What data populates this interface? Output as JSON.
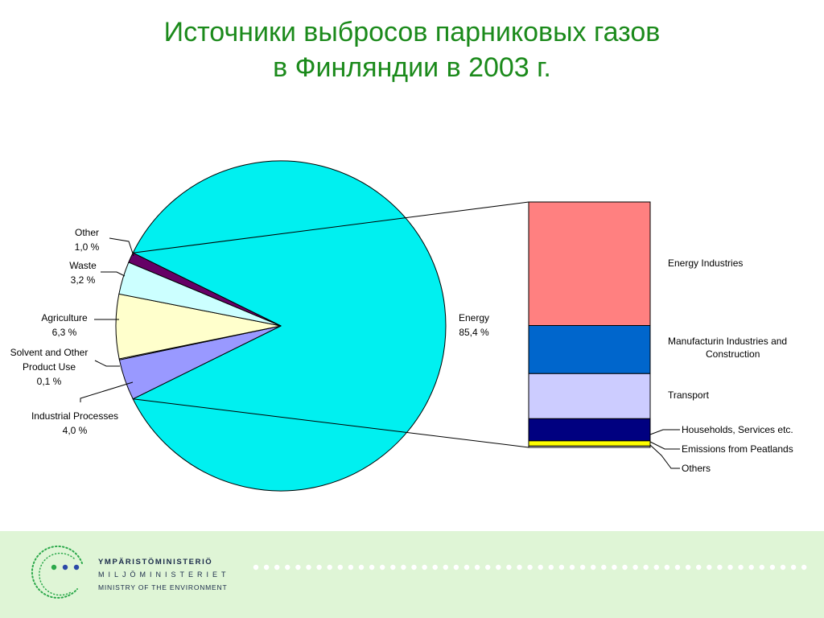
{
  "slide": {
    "title_line1": "Источники выбросов парниковых газов",
    "title_line2": "в Финляндии в 2003 г."
  },
  "footer": {
    "org_fi": "YMPÄRISTÖMINISTERIÖ",
    "org_sv": "MILJÖMINISTERIET",
    "org_en": "MINISTRY OF THE ENVIRONMENT"
  },
  "chart_data": [
    {
      "type": "pie",
      "slices": [
        {
          "label": "Energy",
          "value_label": "85,4 %",
          "value": 85.4,
          "color": "#00f0f0"
        },
        {
          "label": "Industrial Processes",
          "value_label": "4,0 %",
          "value": 4.0,
          "color": "#9999ff"
        },
        {
          "label": "Solvent and Other Product Use",
          "value_label": "0,1 %",
          "value": 0.1,
          "color": "#ffffff"
        },
        {
          "label": "Agriculture",
          "value_label": "6,3 %",
          "value": 6.3,
          "color": "#ffffcc"
        },
        {
          "label": "Waste",
          "value_label": "3,2 %",
          "value": 3.2,
          "color": "#ccffff"
        },
        {
          "label": "Other",
          "value_label": "1,0 %",
          "value": 1.0,
          "color": "#660066"
        }
      ]
    },
    {
      "type": "bar",
      "stacked": true,
      "note": "breakdown of the Energy slice; segment sizes estimated from the image",
      "segments": [
        {
          "label": "Energy Industries",
          "value": 45.2,
          "color": "#ff8080"
        },
        {
          "label": "Manufacturin Industries and Construction",
          "value": 17.6,
          "color": "#0066cc"
        },
        {
          "label": "Transport",
          "value": 16.5,
          "color": "#ccccff"
        },
        {
          "label": "Households, Services etc.",
          "value": 8.1,
          "color": "#000080"
        },
        {
          "label": "Emissions from Peatlands",
          "value": 1.9,
          "color": "#ffff00"
        },
        {
          "label": "Others",
          "value": 0.5,
          "color": "#ffffff"
        }
      ]
    }
  ]
}
